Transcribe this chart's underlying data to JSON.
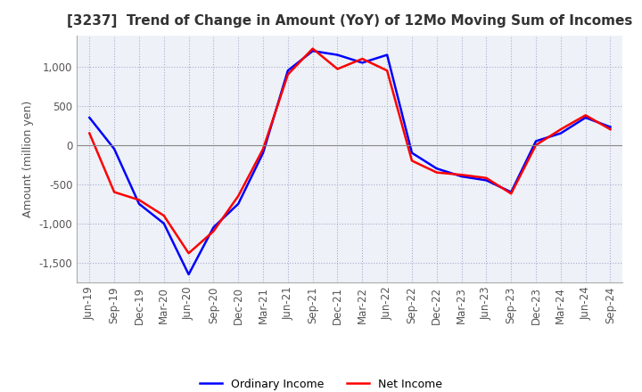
{
  "title": "[3237]  Trend of Change in Amount (YoY) of 12Mo Moving Sum of Incomes",
  "ylabel": "Amount (million yen)",
  "legend": [
    "Ordinary Income",
    "Net Income"
  ],
  "line_colors": [
    "#0000ff",
    "#ff0000"
  ],
  "x_labels": [
    "Jun-19",
    "Sep-19",
    "Dec-19",
    "Mar-20",
    "Jun-20",
    "Sep-20",
    "Dec-20",
    "Mar-21",
    "Jun-21",
    "Sep-21",
    "Dec-21",
    "Mar-22",
    "Jun-22",
    "Sep-22",
    "Dec-22",
    "Mar-23",
    "Jun-23",
    "Sep-23",
    "Dec-23",
    "Mar-24",
    "Jun-24",
    "Sep-24"
  ],
  "ordinary_income": [
    350,
    -50,
    -750,
    -1000,
    -1650,
    -1050,
    -750,
    -100,
    950,
    1200,
    1150,
    1050,
    1150,
    -100,
    -300,
    -400,
    -450,
    -600,
    50,
    150,
    350,
    230
  ],
  "net_income": [
    150,
    -600,
    -700,
    -900,
    -1380,
    -1100,
    -650,
    -50,
    900,
    1230,
    970,
    1100,
    950,
    -200,
    -350,
    -380,
    -420,
    -620,
    0,
    200,
    380,
    200
  ],
  "ylim": [
    -1750,
    1400
  ],
  "yticks": [
    -1500,
    -1000,
    -500,
    0,
    500,
    1000
  ],
  "background_color": "#ffffff",
  "plot_bg_color": "#eef2f8",
  "grid_color": "#aaaacc",
  "title_fontsize": 11,
  "label_fontsize": 9,
  "tick_fontsize": 8.5
}
